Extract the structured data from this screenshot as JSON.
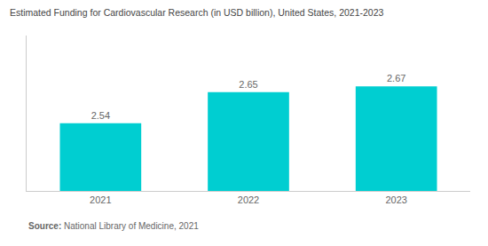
{
  "chart_data": {
    "type": "bar",
    "title": "Estimated Funding for Cardiovascular Research (in USD billion), United States, 2021-2023",
    "categories": [
      "2021",
      "2022",
      "2023"
    ],
    "values": [
      2.54,
      2.65,
      2.67
    ],
    "color": "#00CED1",
    "ylim": [
      2.3,
      2.85
    ],
    "grid": false,
    "data_labels": true,
    "tick_labels": "x",
    "annotations": [
      "Source:",
      "National Library of Medicine, 2021"
    ]
  }
}
